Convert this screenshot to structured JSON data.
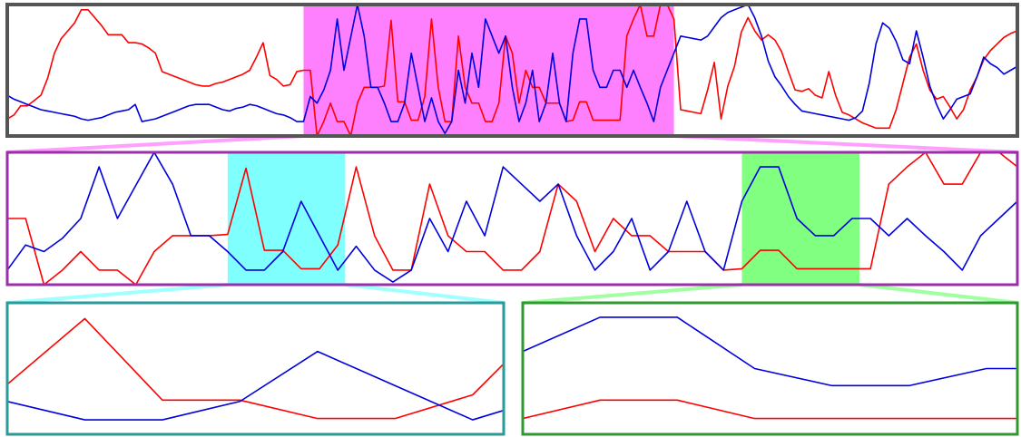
{
  "chart_data": {
    "type": "line",
    "x": [
      0,
      1,
      2,
      3,
      4,
      5,
      6,
      7,
      8,
      9,
      10,
      11,
      12,
      13,
      14,
      15,
      16,
      17,
      18,
      19,
      20,
      21,
      22,
      23,
      24,
      25,
      26,
      27,
      28,
      29,
      30,
      31,
      32,
      33,
      34,
      35,
      36,
      37,
      38,
      39,
      40,
      41,
      42,
      43,
      44,
      45,
      46,
      47,
      48,
      49,
      50,
      51,
      52,
      53,
      54,
      55,
      56,
      57,
      58,
      59,
      60,
      61,
      62,
      63,
      64,
      65,
      66,
      67,
      68,
      69,
      70,
      71,
      72,
      73,
      74,
      75,
      76,
      77,
      78,
      79,
      80,
      81,
      82,
      83,
      84,
      85,
      86,
      87,
      88,
      89,
      90,
      91,
      92,
      93,
      94,
      95,
      96,
      97,
      98,
      99,
      100,
      101,
      102,
      103,
      104,
      105,
      106,
      107,
      108,
      109,
      110,
      111,
      112,
      113,
      114,
      115,
      116,
      117,
      118,
      119,
      120,
      121,
      122,
      123,
      124,
      125,
      126,
      127,
      128,
      129,
      130,
      131,
      132,
      133,
      134,
      135,
      136,
      137,
      138,
      139,
      140,
      141,
      142,
      143,
      144,
      145,
      146,
      147,
      148,
      149,
      150
    ],
    "series": [
      {
        "color": "#ff0000",
        "values": [
          1.3,
          1.6,
          2.3,
          2.3,
          2.7,
          3.1,
          4.4,
          6.3,
          7.4,
          8.0,
          8.6,
          9.6,
          9.6,
          9.0,
          8.4,
          7.7,
          7.7,
          7.7,
          7.1,
          7.1,
          7.0,
          6.7,
          6.3,
          4.9,
          4.7,
          4.5,
          4.3,
          4.1,
          3.9,
          3.8,
          3.8,
          4.0,
          4.1,
          4.3,
          4.5,
          4.7,
          5.0,
          6.0,
          7.1,
          4.6,
          4.3,
          3.8,
          3.9,
          4.9,
          5.0,
          5.0,
          0.0,
          1.1,
          2.5,
          1.1,
          1.1,
          0.0,
          2.5,
          3.7,
          3.7,
          3.7,
          3.8,
          8.8,
          2.6,
          2.6,
          1.2,
          1.2,
          3.0,
          8.9,
          3.7,
          1.1,
          1.1,
          7.6,
          3.7,
          2.5,
          2.5,
          1.1,
          1.1,
          2.5,
          7.6,
          6.3,
          2.5,
          5.0,
          3.7,
          3.7,
          2.5,
          2.5,
          2.5,
          1.1,
          1.2,
          2.6,
          2.6,
          1.2,
          1.2,
          1.2,
          1.2,
          1.2,
          7.6,
          8.9,
          10.0,
          7.6,
          7.6,
          10.0,
          10.0,
          8.9,
          2.0,
          1.9,
          1.8,
          1.7,
          3.5,
          5.6,
          1.3,
          3.8,
          5.3,
          7.9,
          9.0,
          8.0,
          7.3,
          7.7,
          7.3,
          6.4,
          4.9,
          3.5,
          3.4,
          3.6,
          3.1,
          2.9,
          4.9,
          3.1,
          1.8,
          1.6,
          1.3,
          1.0,
          0.8,
          0.6,
          0.6,
          0.6,
          2.0,
          4.0,
          6.0,
          7.0,
          5.0,
          3.5,
          2.8,
          3.0,
          2.2,
          1.3,
          2.0,
          3.5,
          4.5,
          5.8,
          6.5,
          7.0,
          7.5,
          7.8,
          8.0
        ]
      },
      {
        "color": "#0000dd",
        "values": [
          3.1,
          2.8,
          2.6,
          2.4,
          2.2,
          2.0,
          1.9,
          1.8,
          1.7,
          1.6,
          1.5,
          1.3,
          1.2,
          1.3,
          1.4,
          1.6,
          1.8,
          1.9,
          2.0,
          2.4,
          1.1,
          1.2,
          1.3,
          1.5,
          1.7,
          1.9,
          2.1,
          2.3,
          2.4,
          2.4,
          2.4,
          2.2,
          2.0,
          1.9,
          2.1,
          2.2,
          2.4,
          2.3,
          2.1,
          1.9,
          1.7,
          1.6,
          1.4,
          1.1,
          1.1,
          3.0,
          2.5,
          3.5,
          5.0,
          8.9,
          5.0,
          7.5,
          10.0,
          7.6,
          3.7,
          3.7,
          2.5,
          1.1,
          1.1,
          2.5,
          6.3,
          3.7,
          1.1,
          2.9,
          1.1,
          0.2,
          1.1,
          5.0,
          2.5,
          6.3,
          3.7,
          8.9,
          7.6,
          6.3,
          7.6,
          3.7,
          1.1,
          2.5,
          5.0,
          1.1,
          2.5,
          6.3,
          2.5,
          1.1,
          6.3,
          8.9,
          8.9,
          5.0,
          3.7,
          3.7,
          5.0,
          5.0,
          3.7,
          5.0,
          3.7,
          2.5,
          1.1,
          3.7,
          5.0,
          6.3,
          7.6,
          7.5,
          7.4,
          7.3,
          7.6,
          8.3,
          9.0,
          9.4,
          9.6,
          9.8,
          10.0,
          9.0,
          7.6,
          5.7,
          4.5,
          3.8,
          3.0,
          2.4,
          1.9,
          1.8,
          1.7,
          1.6,
          1.5,
          1.4,
          1.3,
          1.2,
          1.4,
          1.9,
          4.0,
          7.0,
          8.6,
          8.2,
          7.2,
          5.8,
          5.5,
          8.0,
          6.0,
          3.8,
          2.4,
          1.3,
          2.0,
          2.8,
          3.0,
          3.2,
          4.5,
          6.0,
          5.5,
          5.2,
          4.7,
          5.0,
          5.3
        ]
      }
    ],
    "ylim": [
      0,
      10
    ],
    "panels": [
      {
        "xlim": [
          0,
          150
        ],
        "frame_color": "#555555"
      },
      {
        "xlim": [
          44,
          99
        ],
        "frame_color": "#9a2fa8",
        "source": 0,
        "highlight_color": "#ff80ff"
      },
      {
        "xlim": [
          56,
          62.4
        ],
        "frame_color": "#2a9a9a",
        "source": 1,
        "highlight_color": "#80ffff"
      },
      {
        "xlim": [
          84,
          90.4
        ],
        "frame_color": "#2f9a2f",
        "source": 1,
        "highlight_color": "#80ff80"
      }
    ]
  }
}
